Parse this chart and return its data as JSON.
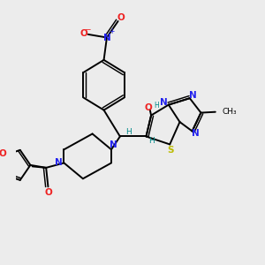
{
  "background_color": "#ececec",
  "figure_size": [
    3.0,
    3.0
  ],
  "dpi": 100,
  "colors": {
    "C": "#000000",
    "N": "#2222ee",
    "O": "#ee2222",
    "S": "#bbbb00",
    "H": "#008888",
    "bond": "#000000"
  },
  "lw": 1.4,
  "off": 0.012
}
